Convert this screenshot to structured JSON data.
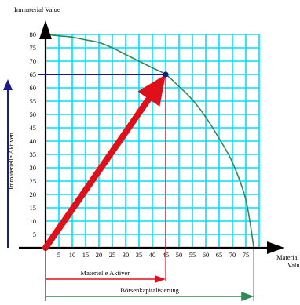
{
  "chart_data": {
    "type": "line",
    "title": "",
    "ylabel": "Immaterial Value",
    "xlabel": "Material Value",
    "xlim": [
      0,
      80
    ],
    "ylim": [
      0,
      80
    ],
    "x_ticks": [
      5,
      10,
      15,
      20,
      25,
      30,
      35,
      40,
      45,
      50,
      55,
      60,
      65,
      70,
      75
    ],
    "y_ticks": [
      5,
      10,
      15,
      20,
      25,
      30,
      35,
      40,
      45,
      50,
      55,
      60,
      65,
      70,
      75,
      80
    ],
    "grid": true,
    "grid_color": "#00e0ff",
    "series": [
      {
        "color": "#2e8b57",
        "points": [
          [
            0,
            80
          ],
          [
            5,
            79.5
          ],
          [
            10,
            79
          ],
          [
            15,
            78
          ],
          [
            20,
            77
          ],
          [
            25,
            75
          ],
          [
            30,
            72.5
          ],
          [
            35,
            70
          ],
          [
            40,
            67.5
          ],
          [
            45,
            65
          ],
          [
            50,
            60.5
          ],
          [
            55,
            55.5
          ],
          [
            60,
            49
          ],
          [
            65,
            41
          ],
          [
            70,
            32
          ],
          [
            75,
            18
          ],
          [
            78,
            0
          ]
        ]
      }
    ],
    "highlight_point": {
      "x": 45,
      "y": 65,
      "color": "#1a1a8c"
    },
    "annotations": {
      "vector_color": "#e0101a",
      "guide_color": "#1a1a8c",
      "immaterial_arrow_label": "Immaterielle Aktiven",
      "material_arrow_label": "Materielle Aktiven",
      "material_arrow_to_x": 45,
      "market_cap_label": "Börsenkapitalisierung",
      "market_cap_arrow_to_x": 78,
      "market_cap_color": "#2e8b57"
    }
  }
}
